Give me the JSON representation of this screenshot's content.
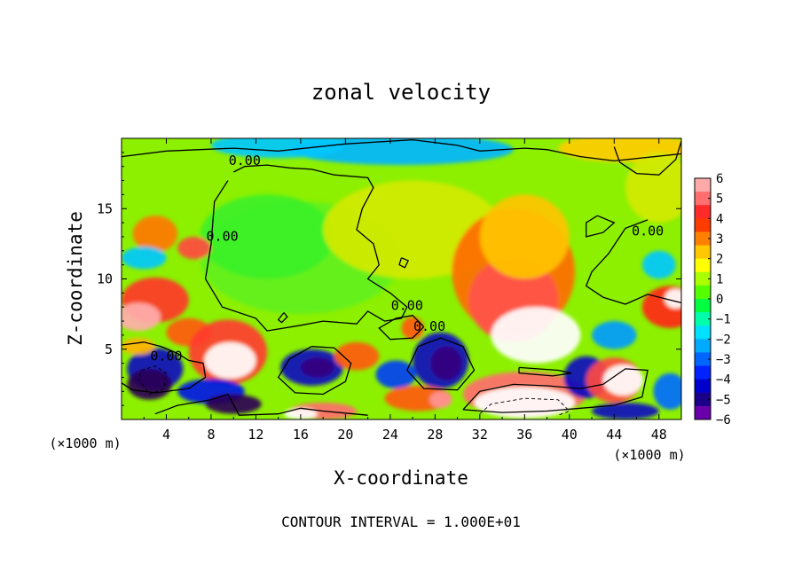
{
  "chart_data": {
    "type": "heatmap",
    "title": "zonal velocity",
    "xlabel": "X-coordinate",
    "ylabel": "Z-coordinate",
    "x_units": "(×1000 m)",
    "y_units": "(×1000 m)",
    "xlim": [
      0,
      50
    ],
    "ylim": [
      0,
      20
    ],
    "x_ticks": [
      4,
      8,
      12,
      16,
      20,
      24,
      28,
      32,
      36,
      40,
      44,
      48
    ],
    "y_ticks": [
      5,
      10,
      15
    ],
    "footer": "CONTOUR INTERVAL = 1.000E+01",
    "contour_labels": [
      {
        "text": "0.00",
        "x": 11,
        "z": 18.1
      },
      {
        "text": "0.00",
        "x": 9,
        "z": 12.7
      },
      {
        "text": "0.00",
        "x": 25.5,
        "z": 7.8
      },
      {
        "text": "0.00",
        "x": 27.5,
        "z": 6.3
      },
      {
        "text": "0.00",
        "x": 4,
        "z": 4.2
      },
      {
        "text": "0.00",
        "x": 47,
        "z": 13.1
      }
    ],
    "colorbar": {
      "ticks": [
        "6",
        "5",
        "4",
        "3",
        "2",
        "1",
        "0",
        "−1",
        "−2",
        "−3",
        "−4",
        "−5",
        "−6"
      ],
      "colors": [
        "#ffaaaa",
        "#ff6f6f",
        "#ff2a2a",
        "#ff3c00",
        "#ff8000",
        "#ffc800",
        "#ffff00",
        "#aaff00",
        "#55ff00",
        "#00ff40",
        "#00ffaa",
        "#00e0ff",
        "#00aaff",
        "#0066ff",
        "#0022ff",
        "#0000cc",
        "#1a0088",
        "#6a00aa"
      ]
    },
    "blobs": [
      {
        "x": 16,
        "z": 11.5,
        "rx": 9,
        "rz": 4,
        "v": 0.3
      },
      {
        "x": 13,
        "z": 13,
        "rx": 6,
        "rz": 3,
        "v": 0
      },
      {
        "x": 26,
        "z": 13.5,
        "rx": 8,
        "rz": 3.5,
        "v": 1.3
      },
      {
        "x": 35,
        "z": 10.5,
        "rx": 5.5,
        "rz": 4.5,
        "v": 3.3
      },
      {
        "x": 35,
        "z": 8.5,
        "rx": 4,
        "rz": 3,
        "v": 4.6
      },
      {
        "x": 37,
        "z": 6,
        "rx": 4,
        "rz": 2,
        "v": 6
      },
      {
        "x": 36,
        "z": 13,
        "rx": 4,
        "rz": 3,
        "v": 2.3
      },
      {
        "x": 25,
        "z": 19.2,
        "rx": 10,
        "rz": 1.1,
        "v": -2.2
      },
      {
        "x": 14,
        "z": 19.5,
        "rx": 6,
        "rz": 0.9,
        "v": -2
      },
      {
        "x": 45,
        "z": 19.3,
        "rx": 6,
        "rz": 1,
        "v": 2.2
      },
      {
        "x": 48,
        "z": 16.5,
        "rx": 3,
        "rz": 2.5,
        "v": 1.3
      },
      {
        "x": 3,
        "z": 13.2,
        "rx": 2,
        "rz": 1.3,
        "v": 3.2
      },
      {
        "x": 6.5,
        "z": 12.2,
        "rx": 1.5,
        "rz": 0.8,
        "v": 4.5
      },
      {
        "x": 3,
        "z": 8.5,
        "rx": 3,
        "rz": 1.6,
        "v": 4.2
      },
      {
        "x": 1.5,
        "z": 7.3,
        "rx": 2,
        "rz": 1,
        "v": 5.8
      },
      {
        "x": 6,
        "z": 6.2,
        "rx": 2,
        "rz": 1,
        "v": 3.5
      },
      {
        "x": 9.5,
        "z": 4.8,
        "rx": 3.5,
        "rz": 2.3,
        "v": 4.3
      },
      {
        "x": 9.7,
        "z": 4.2,
        "rx": 2.3,
        "rz": 1.3,
        "v": 6.5
      },
      {
        "x": 3,
        "z": 3.6,
        "rx": 2.5,
        "rz": 1.5,
        "v": -4.5
      },
      {
        "x": 2.5,
        "z": 2.5,
        "rx": 2,
        "rz": 1.1,
        "v": -6.5
      },
      {
        "x": 8,
        "z": 2,
        "rx": 3,
        "rz": 0.9,
        "v": -4
      },
      {
        "x": 10,
        "z": 1.1,
        "rx": 2.5,
        "rz": 0.7,
        "v": -6.5
      },
      {
        "x": 17,
        "z": 3.7,
        "rx": 2.8,
        "rz": 1.3,
        "v": -4.5
      },
      {
        "x": 17.5,
        "z": 3.7,
        "rx": 1.5,
        "rz": 0.7,
        "v": -5.8
      },
      {
        "x": 21,
        "z": 4.5,
        "rx": 2,
        "rz": 1,
        "v": 3.5
      },
      {
        "x": 18,
        "z": 0.6,
        "rx": 3,
        "rz": 0.6,
        "v": 5
      },
      {
        "x": 16,
        "z": 0.4,
        "rx": 1.5,
        "rz": 0.4,
        "v": 6.5
      },
      {
        "x": 28.5,
        "z": 4.2,
        "rx": 2.5,
        "rz": 2,
        "v": -4.5
      },
      {
        "x": 29,
        "z": 4,
        "rx": 1.4,
        "rz": 1.2,
        "v": -5.8
      },
      {
        "x": 24.5,
        "z": 3.2,
        "rx": 1.8,
        "rz": 1,
        "v": -3.5
      },
      {
        "x": 26.5,
        "z": 1.5,
        "rx": 3,
        "rz": 0.9,
        "v": 3.5
      },
      {
        "x": 28.5,
        "z": 1.4,
        "rx": 1,
        "rz": 0.6,
        "v": 5.5
      },
      {
        "x": 26,
        "z": 6.5,
        "rx": 1,
        "rz": 0.8,
        "v": 3.5
      },
      {
        "x": 36,
        "z": 1.8,
        "rx": 5.5,
        "rz": 1.6,
        "v": 5
      },
      {
        "x": 36,
        "z": 1.2,
        "rx": 4.5,
        "rz": 1.1,
        "v": 6.5
      },
      {
        "x": 41.5,
        "z": 3,
        "rx": 2,
        "rz": 1.5,
        "v": -4.5
      },
      {
        "x": 44,
        "z": 2.8,
        "rx": 2.5,
        "rz": 1.6,
        "v": 4.5
      },
      {
        "x": 44.8,
        "z": 2.8,
        "rx": 1.8,
        "rz": 1.1,
        "v": 6.5
      },
      {
        "x": 45,
        "z": 0.6,
        "rx": 3,
        "rz": 0.6,
        "v": -4.5
      },
      {
        "x": 49,
        "z": 8,
        "rx": 2.5,
        "rz": 1.5,
        "v": 4
      },
      {
        "x": 49.5,
        "z": 8.6,
        "rx": 1,
        "rz": 0.7,
        "v": 6.5
      },
      {
        "x": 44,
        "z": 6,
        "rx": 2,
        "rz": 1,
        "v": -2.5
      },
      {
        "x": 1.5,
        "z": 5.2,
        "rx": 1.5,
        "rz": 0.6,
        "v": 2.5
      },
      {
        "x": 49,
        "z": 2,
        "rx": 1.5,
        "rz": 1.3,
        "v": -3
      },
      {
        "x": 48,
        "z": 11,
        "rx": 1.5,
        "rz": 1,
        "v": -2
      },
      {
        "x": 2,
        "z": 11.5,
        "rx": 2,
        "rz": 0.8,
        "v": -2
      }
    ],
    "zero_contours": [
      [
        [
          0,
          18.7
        ],
        [
          4,
          19.1
        ],
        [
          10,
          19.3
        ],
        [
          14,
          19.1
        ],
        [
          20,
          19.6
        ],
        [
          26,
          19.9
        ],
        [
          30,
          19.5
        ],
        [
          32,
          19.1
        ],
        [
          36,
          19.3
        ],
        [
          38,
          19.2
        ],
        [
          41,
          18.7
        ],
        [
          44,
          18.4
        ],
        [
          50,
          18.9
        ]
      ],
      [
        [
          10,
          17.6
        ],
        [
          11,
          18.0
        ],
        [
          13,
          18.1
        ],
        [
          15,
          17.9
        ],
        [
          17,
          17.8
        ],
        [
          19,
          17.4
        ],
        [
          22,
          17.2
        ],
        [
          22.5,
          16.5
        ],
        [
          21.5,
          15
        ],
        [
          21,
          13.5
        ],
        [
          22.5,
          12.5
        ],
        [
          23,
          11
        ],
        [
          22,
          10
        ],
        [
          24,
          9
        ],
        [
          25.5,
          8
        ],
        [
          25,
          7.2
        ],
        [
          23.5,
          7
        ],
        [
          22,
          7.7
        ],
        [
          21,
          6.8
        ],
        [
          18,
          7
        ],
        [
          16,
          6.7
        ],
        [
          13,
          6.3
        ],
        [
          12,
          7.2
        ],
        [
          9,
          8
        ],
        [
          7.5,
          10
        ],
        [
          8,
          12.5
        ],
        [
          8.3,
          15.5
        ],
        [
          9.5,
          17
        ]
      ],
      [
        [
          27,
          6.6
        ],
        [
          26,
          5.8
        ],
        [
          24,
          5.7
        ],
        [
          23,
          6.5
        ],
        [
          24.5,
          7.2
        ],
        [
          26,
          7.4
        ],
        [
          27,
          6.6
        ]
      ],
      [
        [
          47,
          14.2
        ],
        [
          45,
          13.6
        ],
        [
          43.5,
          11.8
        ],
        [
          42,
          10.5
        ],
        [
          41.5,
          9.5
        ],
        [
          43,
          8.7
        ],
        [
          45,
          8.2
        ],
        [
          47,
          8.9
        ],
        [
          50,
          8.3
        ]
      ],
      [
        [
          42.5,
          14.5
        ],
        [
          41.5,
          14
        ],
        [
          41.5,
          13
        ],
        [
          43,
          13.3
        ],
        [
          44,
          14
        ],
        [
          42.5,
          14.5
        ]
      ],
      [
        [
          44,
          19.4
        ],
        [
          44.5,
          18.3
        ],
        [
          46,
          17.5
        ],
        [
          48,
          17.4
        ],
        [
          49.5,
          18.5
        ],
        [
          50,
          19.8
        ]
      ],
      [
        [
          0,
          5.3
        ],
        [
          2,
          5.5
        ],
        [
          3.5,
          5.2
        ],
        [
          5,
          4.7
        ],
        [
          6,
          4.2
        ],
        [
          7.3,
          4
        ],
        [
          7.5,
          3
        ],
        [
          6,
          2.2
        ],
        [
          3,
          1.9
        ],
        [
          1,
          2.1
        ],
        [
          0,
          2.6
        ]
      ],
      [
        [
          17,
          5.2
        ],
        [
          15,
          4.3
        ],
        [
          14,
          3
        ],
        [
          15.5,
          1.9
        ],
        [
          18,
          1.8
        ],
        [
          20,
          2.7
        ],
        [
          20.5,
          4
        ],
        [
          19,
          5.1
        ],
        [
          17,
          5.2
        ]
      ],
      [
        [
          26.5,
          5.2
        ],
        [
          25.5,
          3.5
        ],
        [
          27,
          2.2
        ],
        [
          30,
          2.1
        ],
        [
          31.5,
          3.5
        ],
        [
          30.5,
          5.2
        ],
        [
          28.5,
          5.8
        ],
        [
          26.5,
          5.2
        ]
      ],
      [
        [
          30.5,
          0.7
        ],
        [
          32,
          2
        ],
        [
          35,
          2.5
        ],
        [
          38,
          2.4
        ],
        [
          41,
          2.2
        ],
        [
          43,
          2.5
        ],
        [
          45,
          3.6
        ],
        [
          47,
          3.5
        ],
        [
          46.5,
          1.6
        ],
        [
          44,
          1
        ],
        [
          41,
          0.8
        ],
        [
          38,
          0.6
        ],
        [
          34,
          0.5
        ],
        [
          30.5,
          0.7
        ]
      ],
      [
        [
          9.5,
          1.8
        ],
        [
          10.5,
          0.3
        ],
        [
          14,
          0.4
        ],
        [
          16,
          0.8
        ],
        [
          18,
          0.6
        ],
        [
          22,
          0.3
        ]
      ],
      [
        [
          3,
          0.4
        ],
        [
          5,
          1
        ],
        [
          8,
          1.4
        ],
        [
          9.5,
          1.8
        ]
      ],
      [
        [
          14.5,
          7.6
        ],
        [
          14,
          7.1
        ],
        [
          14.3,
          6.9
        ],
        [
          14.8,
          7.3
        ],
        [
          14.5,
          7.6
        ]
      ],
      [
        [
          25,
          11.5
        ],
        [
          24.8,
          11
        ],
        [
          25.3,
          10.8
        ],
        [
          25.6,
          11.3
        ],
        [
          25,
          11.5
        ]
      ],
      [
        [
          35.5,
          3.7
        ],
        [
          39,
          3.5
        ],
        [
          40.2,
          3.3
        ],
        [
          38.5,
          3.1
        ],
        [
          35.5,
          3.3
        ],
        [
          35.5,
          3.7
        ]
      ]
    ],
    "dashed_contours": [
      [
        [
          1.5,
          2.9
        ],
        [
          2.5,
          1.8
        ],
        [
          3.8,
          2.2
        ],
        [
          4,
          3.3
        ],
        [
          3,
          3.8
        ],
        [
          1.8,
          3.5
        ],
        [
          1.5,
          2.9
        ]
      ],
      [
        [
          32,
          0.4
        ],
        [
          33,
          1.1
        ],
        [
          36,
          1.5
        ],
        [
          39,
          1.4
        ],
        [
          40,
          0.6
        ],
        [
          39,
          0.3
        ]
      ]
    ]
  }
}
